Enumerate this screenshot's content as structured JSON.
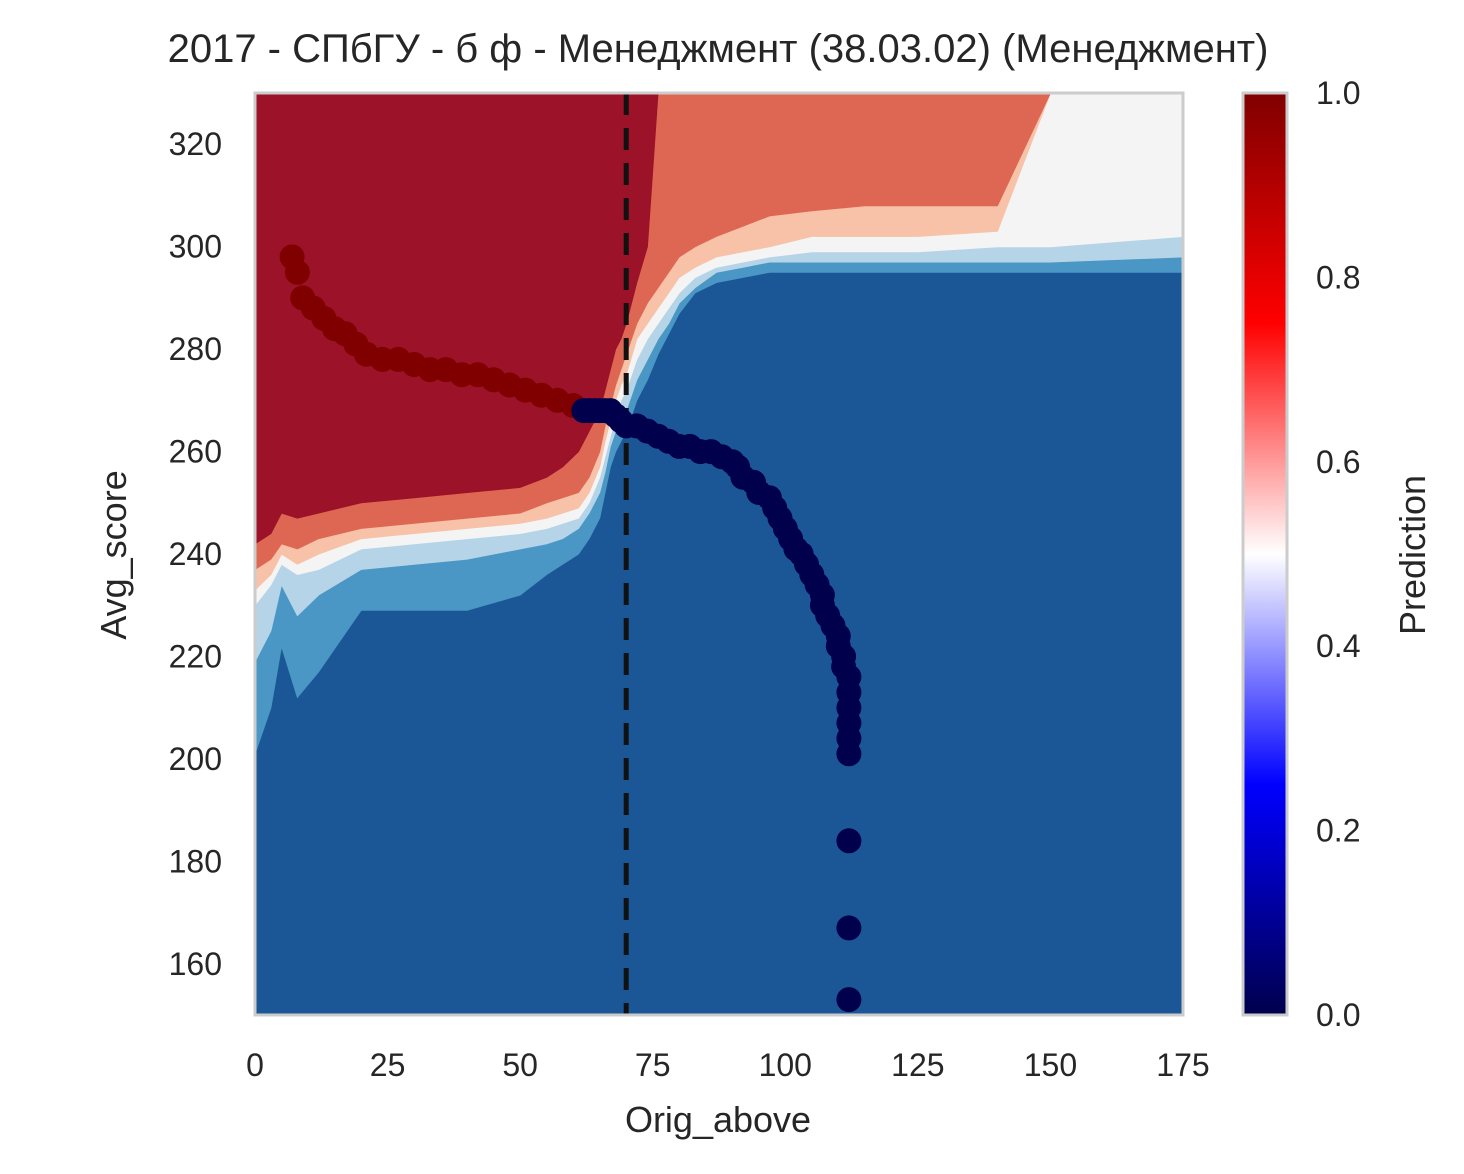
{
  "chart_data": {
    "type": "contour_scatter",
    "title": "2017 - СПбГУ - б ф - Менеджмент (38.03.02) (Менеджмент)",
    "xlabel": "Orig_above",
    "ylabel": "Avg_score",
    "xlim": [
      0,
      175
    ],
    "ylim": [
      150,
      330
    ],
    "xticks": [
      0,
      25,
      50,
      75,
      100,
      125,
      150,
      175
    ],
    "yticks": [
      160,
      180,
      200,
      220,
      240,
      260,
      280,
      300,
      320
    ],
    "grid": false,
    "threshold_line": {
      "x": 70,
      "style": "dashed",
      "color": "#111111"
    },
    "colorbar": {
      "label": "Prediction",
      "range": [
        0,
        1
      ],
      "ticks": [
        "0.0",
        "0.2",
        "0.4",
        "0.6",
        "0.8",
        "1.0"
      ],
      "colormap": "seismic"
    },
    "contour_levels": {
      "colors": [
        "#1b5796",
        "#4a97c5",
        "#b5d4e7",
        "#f4f4f4",
        "#f7c2a7",
        "#de6753",
        "#9b1229"
      ],
      "boundaries": {
        "x": [
          0,
          3,
          5,
          8,
          12,
          20,
          30,
          40,
          50,
          55,
          58,
          61,
          63,
          65,
          66,
          67,
          68,
          69,
          70,
          72,
          74,
          76,
          78,
          80,
          83,
          87,
          92,
          97,
          105,
          115,
          125,
          140,
          150,
          175
        ],
        "b0": [
          201,
          210,
          222,
          212,
          217,
          229,
          229,
          229,
          232,
          236,
          238,
          240,
          243,
          247,
          252,
          257,
          260,
          262,
          264,
          270,
          274,
          279,
          283,
          287,
          291,
          293,
          294,
          295,
          295,
          295,
          295,
          295,
          295,
          295
        ],
        "b1": [
          219,
          225,
          234,
          228,
          232,
          237,
          238,
          239,
          241,
          242,
          243,
          245,
          248,
          252,
          256,
          261,
          264,
          266,
          268,
          274,
          278,
          282,
          285,
          289,
          292,
          295,
          296,
          297,
          297,
          297,
          297,
          297,
          297,
          298
        ],
        "b2": [
          230,
          234,
          238,
          236,
          237,
          241,
          242,
          243,
          244,
          245,
          246,
          247,
          250,
          255,
          259,
          263,
          267,
          270,
          272,
          278,
          282,
          285,
          288,
          291,
          294,
          296,
          297,
          298,
          299,
          299,
          299,
          300,
          300,
          302
        ],
        "b3": [
          233,
          236,
          240,
          238,
          240,
          243,
          244,
          245,
          246,
          247,
          248,
          249,
          252,
          257,
          262,
          266,
          270,
          273,
          275,
          282,
          285,
          288,
          291,
          294,
          296,
          298,
          299,
          300,
          302,
          302,
          302,
          303,
          330,
          330
        ],
        "b4": [
          237,
          239,
          242,
          241,
          243,
          245,
          246,
          247,
          248,
          250,
          251,
          252,
          255,
          260,
          265,
          269,
          273,
          276,
          279,
          285,
          289,
          292,
          295,
          298,
          300,
          302,
          304,
          306,
          307,
          308,
          308,
          308,
          330,
          330
        ],
        "b5": [
          242,
          244,
          248,
          247,
          248,
          250,
          251,
          252,
          253,
          255,
          257,
          260,
          264,
          268,
          272,
          276,
          280,
          282,
          285,
          293,
          300,
          330,
          330,
          330,
          330,
          330,
          330,
          330,
          330,
          330,
          330,
          330,
          330,
          330
        ]
      }
    },
    "scatter": {
      "size": "large",
      "points": [
        [
          7,
          298
        ],
        [
          8,
          295
        ],
        [
          9,
          290
        ],
        [
          11,
          288
        ],
        [
          13,
          286
        ],
        [
          15,
          284
        ],
        [
          17,
          283
        ],
        [
          19,
          281
        ],
        [
          21,
          279
        ],
        [
          24,
          278
        ],
        [
          27,
          278
        ],
        [
          30,
          277
        ],
        [
          33,
          276
        ],
        [
          36,
          276
        ],
        [
          39,
          275
        ],
        [
          42,
          275
        ],
        [
          45,
          274
        ],
        [
          48,
          273
        ],
        [
          51,
          272
        ],
        [
          54,
          271
        ],
        [
          57,
          270
        ],
        [
          60,
          269
        ],
        [
          62,
          268
        ],
        [
          63,
          268
        ],
        [
          64,
          268
        ],
        [
          65,
          268
        ],
        [
          66,
          268
        ],
        [
          67,
          268
        ],
        [
          68,
          267
        ],
        [
          69,
          266
        ],
        [
          70,
          265
        ],
        [
          72,
          265
        ],
        [
          74,
          264
        ],
        [
          76,
          263
        ],
        [
          78,
          262
        ],
        [
          80,
          261
        ],
        [
          82,
          261
        ],
        [
          84,
          260
        ],
        [
          86,
          260
        ],
        [
          88,
          259
        ],
        [
          90,
          258
        ],
        [
          91,
          257
        ],
        [
          92,
          255
        ],
        [
          94,
          254
        ],
        [
          95,
          252
        ],
        [
          97,
          251
        ],
        [
          98,
          249
        ],
        [
          99,
          247
        ],
        [
          100,
          245
        ],
        [
          101,
          243
        ],
        [
          102,
          241
        ],
        [
          103,
          240
        ],
        [
          104,
          238
        ],
        [
          105,
          236
        ],
        [
          106,
          234
        ],
        [
          107,
          232
        ],
        [
          107,
          230
        ],
        [
          108,
          228
        ],
        [
          109,
          226
        ],
        [
          110,
          224
        ],
        [
          110,
          222
        ],
        [
          111,
          220
        ],
        [
          111,
          218
        ],
        [
          112,
          216
        ],
        [
          112,
          213
        ],
        [
          112,
          210
        ],
        [
          112,
          207
        ],
        [
          112,
          204
        ],
        [
          112,
          201
        ],
        [
          112,
          184
        ],
        [
          112,
          167
        ],
        [
          112,
          153
        ]
      ]
    }
  }
}
